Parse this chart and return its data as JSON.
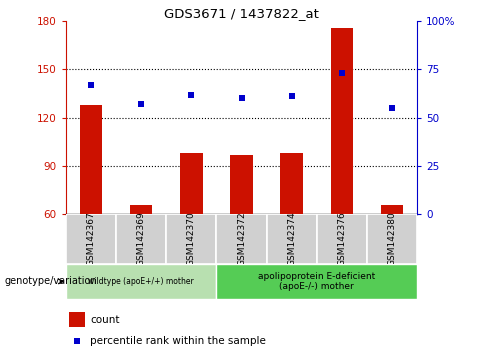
{
  "title": "GDS3671 / 1437822_at",
  "samples": [
    "GSM142367",
    "GSM142369",
    "GSM142370",
    "GSM142372",
    "GSM142374",
    "GSM142376",
    "GSM142380"
  ],
  "counts": [
    128,
    66,
    98,
    97,
    98,
    176,
    66
  ],
  "percentile_ranks": [
    67,
    57,
    62,
    60,
    61,
    73,
    55
  ],
  "ylim_left": [
    60,
    180
  ],
  "ylim_right": [
    0,
    100
  ],
  "yticks_left": [
    60,
    90,
    120,
    150,
    180
  ],
  "yticks_right": [
    0,
    25,
    50,
    75,
    100
  ],
  "ytick_labels_right": [
    "0",
    "25",
    "50",
    "75",
    "100%"
  ],
  "bar_color": "#cc1100",
  "dot_color": "#0000cc",
  "bar_baseline": 60,
  "group1_label": "wildtype (apoE+/+) mother",
  "group2_label": "apolipoprotein E-deficient\n(apoE-/-) mother",
  "group1_color": "#b8e0b0",
  "group2_color": "#55cc55",
  "group1_indices": [
    0,
    1,
    2
  ],
  "group2_indices": [
    3,
    4,
    5,
    6
  ],
  "legend_bar_label": "count",
  "legend_dot_label": "percentile rank within the sample",
  "genotype_label": "genotype/variation",
  "bg_plot": "#ffffff",
  "tick_area_bg": "#d0d0d0",
  "border_color": "#888888"
}
